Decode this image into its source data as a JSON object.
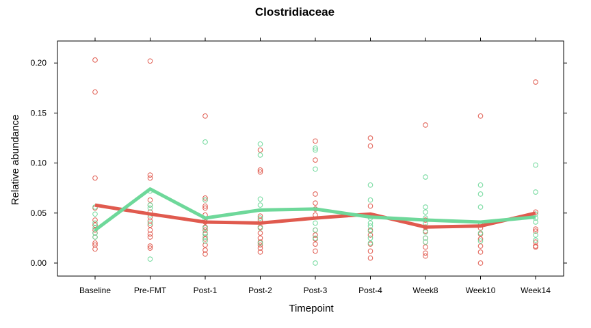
{
  "chart_data": {
    "type": "scatter",
    "title": "Clostridiaceae",
    "xlabel": "Timepoint",
    "ylabel": "Relative abundance",
    "categories": [
      "Baseline",
      "Pre-FMT",
      "Post-1",
      "Post-2",
      "Post-3",
      "Post-4",
      "Week8",
      "Week10",
      "Week14"
    ],
    "ylim": [
      -0.013,
      0.222
    ],
    "yticks": [
      "0.00",
      "0.05",
      "0.10",
      "0.15",
      "0.20"
    ],
    "grid": false,
    "legend": "none",
    "series": [
      {
        "color": "#e05a4e",
        "points": [
          [
            [
              0.203,
              0.171,
              0.085,
              0.055,
              0.043,
              0.038,
              0.033,
              0.03,
              0.026,
              0.02,
              0.018,
              0.014
            ]
          ],
          [
            [
              0.202,
              0.088,
              0.085,
              0.063,
              0.058,
              0.051,
              0.046,
              0.042,
              0.038,
              0.033,
              0.029,
              0.026,
              0.017,
              0.015
            ]
          ],
          [
            [
              0.147,
              0.065,
              0.063,
              0.057,
              0.055,
              0.048,
              0.041,
              0.036,
              0.033,
              0.029,
              0.024,
              0.018,
              0.013,
              0.009
            ]
          ],
          [
            [
              0.113,
              0.093,
              0.091,
              0.047,
              0.043,
              0.036,
              0.03,
              0.025,
              0.021,
              0.018,
              0.015,
              0.011
            ]
          ],
          [
            [
              0.122,
              0.103,
              0.069,
              0.06,
              0.054,
              0.048,
              0.033,
              0.028,
              0.024,
              0.019,
              0.012
            ]
          ],
          [
            [
              0.125,
              0.117,
              0.057,
              0.048,
              0.033,
              0.028,
              0.019,
              0.012,
              0.005
            ]
          ],
          [
            [
              0.138,
              0.043,
              0.036,
              0.032,
              0.025,
              0.021,
              0.016,
              0.01,
              0.007
            ]
          ],
          [
            [
              0.147,
              0.04,
              0.035,
              0.029,
              0.024,
              0.017,
              0.011,
              0.0
            ]
          ],
          [
            [
              0.181,
              0.051,
              0.034,
              0.032,
              0.021,
              0.017,
              0.016
            ]
          ]
        ],
        "line": [
          0.058,
          0.049,
          0.041,
          0.04,
          0.045,
          0.049,
          0.036,
          0.037,
          0.05
        ]
      },
      {
        "color": "#6ed89a",
        "points": [
          [
            [
              0.056,
              0.049,
              0.04,
              0.035,
              0.03,
              0.026
            ]
          ],
          [
            [
              0.072,
              0.058,
              0.055,
              0.048,
              0.04,
              0.004
            ]
          ],
          [
            [
              0.121,
              0.063,
              0.044,
              0.035,
              0.03,
              0.026,
              0.022
            ]
          ],
          [
            [
              0.119,
              0.108,
              0.064,
              0.058,
              0.045,
              0.035,
              0.02
            ]
          ],
          [
            [
              0.115,
              0.113,
              0.094,
              0.04,
              0.033,
              0.025,
              0.0
            ]
          ],
          [
            [
              0.078,
              0.063,
              0.045,
              0.04,
              0.037,
              0.032,
              0.025,
              0.02
            ]
          ],
          [
            [
              0.086,
              0.056,
              0.051,
              0.045,
              0.04,
              0.031,
              0.025,
              0.021
            ]
          ],
          [
            [
              0.078,
              0.069,
              0.056,
              0.038,
              0.03,
              0.022
            ]
          ],
          [
            [
              0.098,
              0.071,
              0.049,
              0.045,
              0.041,
              0.028,
              0.023
            ]
          ]
        ],
        "line": [
          0.033,
          0.074,
          0.045,
          0.053,
          0.054,
          0.046,
          0.043,
          0.041,
          0.046
        ]
      }
    ]
  }
}
